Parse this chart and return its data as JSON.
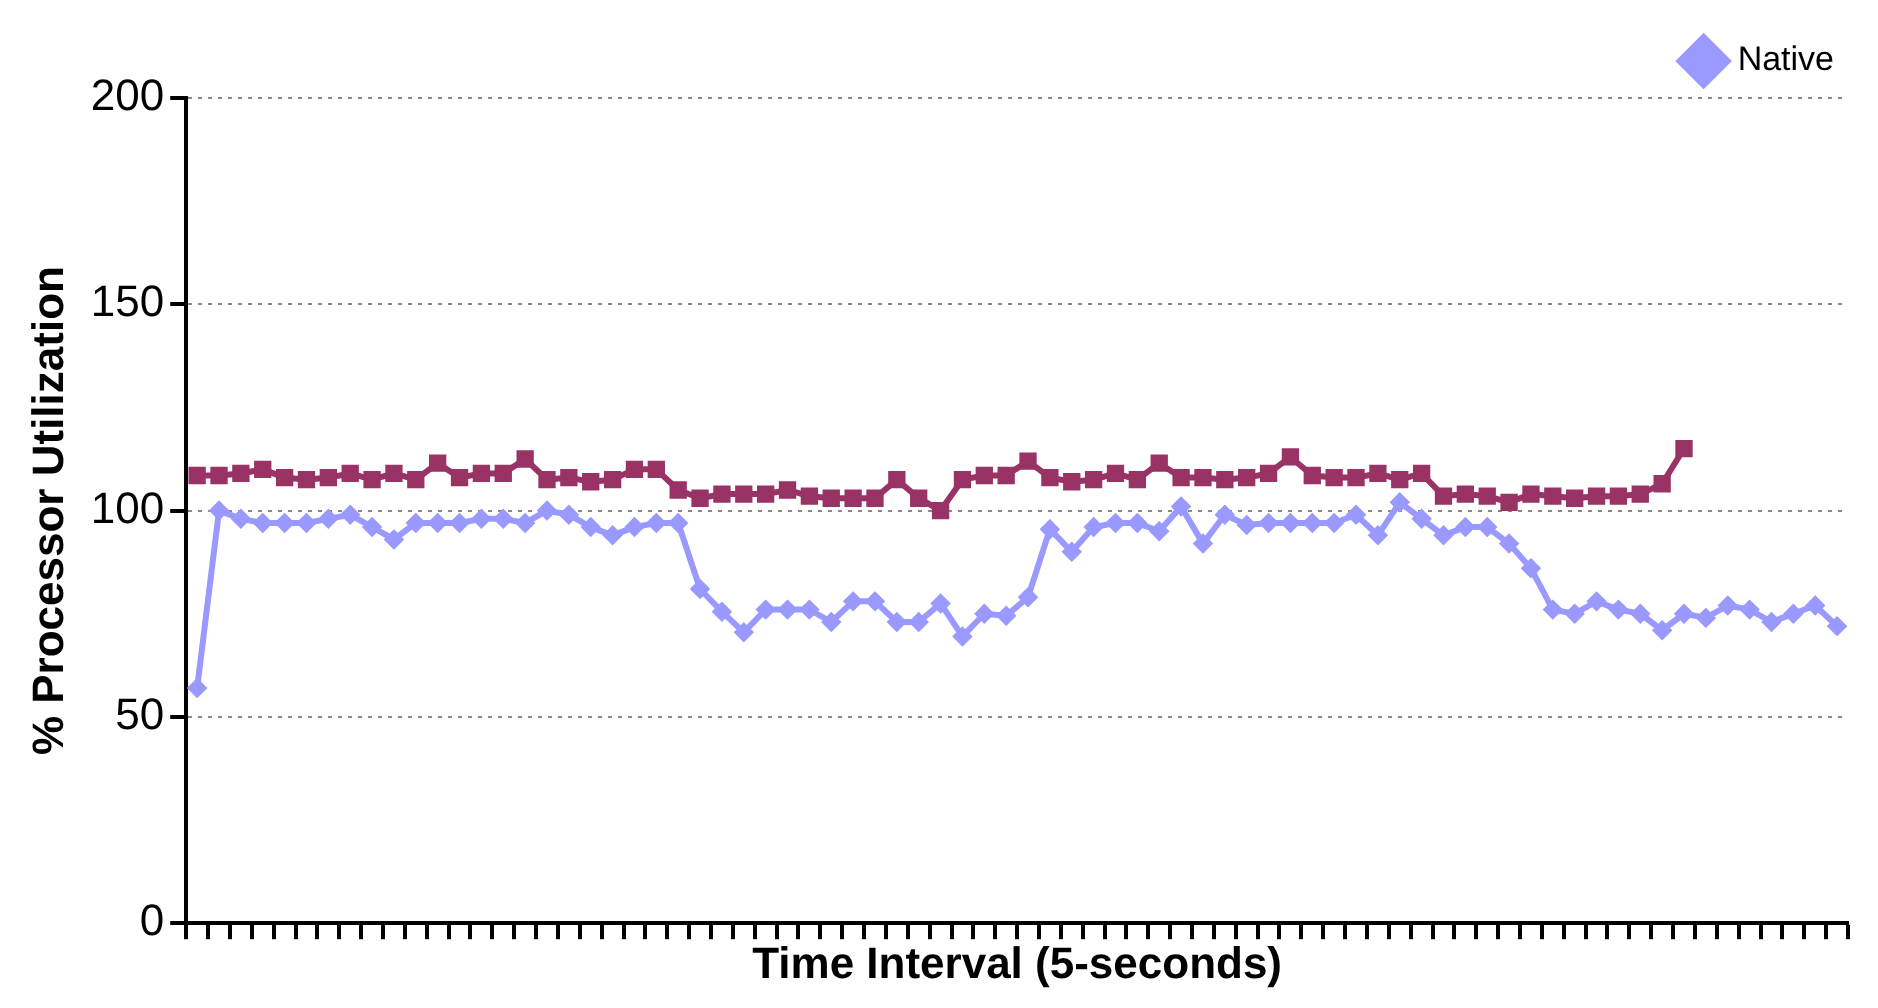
{
  "chart_data": {
    "type": "line",
    "xlabel": "Time Interval (5-seconds)",
    "ylabel": "% Processor Utilization",
    "categories": [
      null,
      null,
      null,
      null,
      null,
      null,
      null,
      null,
      null,
      null,
      null,
      null,
      null,
      null,
      null,
      null,
      null,
      null,
      null,
      null,
      null,
      null,
      null,
      null,
      null,
      null,
      null,
      null,
      null,
      null,
      null,
      null,
      null,
      null,
      null,
      null,
      null,
      null,
      null,
      null,
      null,
      null,
      null,
      null,
      null,
      null,
      null,
      null,
      null,
      null,
      null,
      null,
      null,
      null,
      null,
      null,
      null,
      null,
      null,
      null,
      null,
      null,
      null,
      null,
      null,
      null,
      null,
      null,
      null,
      null,
      null,
      null,
      null,
      null,
      null,
      null
    ],
    "series": [
      {
        "name": "Native",
        "color": "#9999ff",
        "marker": "diamond",
        "values": [
          57,
          100,
          98,
          97,
          97,
          97,
          98,
          99,
          96,
          93,
          97,
          97,
          97,
          98,
          98,
          97,
          100,
          99,
          96,
          94,
          96,
          97,
          97,
          81,
          75.5,
          70.5,
          76,
          76,
          76,
          73,
          78,
          78,
          73,
          73,
          77.5,
          69.5,
          75,
          74.5,
          79,
          95.5,
          90,
          96,
          97,
          97,
          95,
          101,
          92,
          99,
          96.5,
          97,
          97,
          97,
          97,
          99,
          94,
          102,
          98,
          94,
          96,
          96,
          92,
          86,
          76,
          75,
          78,
          76,
          75,
          71,
          75,
          74,
          77,
          76,
          73,
          75,
          77,
          72
        ]
      },
      {
        "color": "#993366",
        "marker": "square",
        "values": [
          108.5,
          108.5,
          109,
          110,
          108,
          107.5,
          108,
          109,
          107.5,
          109,
          107.5,
          111.5,
          108,
          109,
          109,
          112.5,
          107.5,
          108,
          107,
          107.5,
          110,
          110,
          105,
          103,
          104,
          104,
          104,
          105,
          103.5,
          103,
          103,
          103,
          107.5,
          103,
          100,
          107.5,
          108.5,
          108.5,
          112,
          108,
          107,
          107.5,
          109,
          107.5,
          111.5,
          108,
          108,
          107.5,
          108,
          109,
          113,
          108.5,
          108,
          108,
          109,
          107.5,
          109,
          103.5,
          104,
          103.5,
          102,
          104,
          103.5,
          103,
          103.5,
          103.5,
          104,
          106.5,
          115,
          null,
          null,
          null,
          null,
          null,
          null,
          null
        ]
      }
    ],
    "ylim": [
      0,
      200
    ],
    "yticks": [
      0,
      50,
      100,
      150,
      200
    ],
    "grid": "y",
    "legend": "top right",
    "tick_labels": "y"
  }
}
